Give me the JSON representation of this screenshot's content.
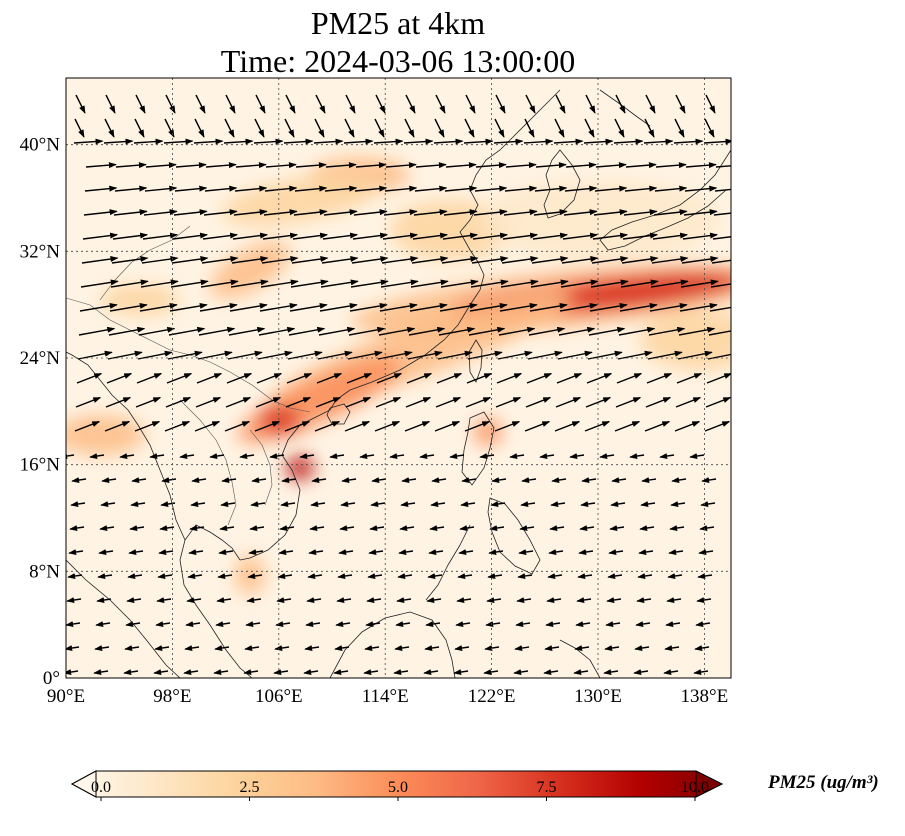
{
  "title": {
    "line1": "PM25 at 4km",
    "line2": "Time: 2024-03-06 13:00:00"
  },
  "map": {
    "extent": {
      "lon_min": 90,
      "lon_max": 140,
      "lat_min": 0,
      "lat_max": 45
    },
    "lon_ticks": [
      "90°E",
      "98°E",
      "106°E",
      "114°E",
      "122°E",
      "130°E",
      "138°E"
    ],
    "lat_ticks": [
      "0°",
      "8°N",
      "16°N",
      "24°N",
      "32°N",
      "40°N"
    ],
    "gridlines": "dotted",
    "field": "PM25",
    "overlay": "wind-vectors"
  },
  "colorbar": {
    "colormap": "OrRd",
    "label": "PM25 (ug/m³)",
    "min": 0.0,
    "max": 10.0,
    "ticks": [
      "0.0",
      "2.5",
      "5.0",
      "7.5",
      "10.0"
    ],
    "extend": "both",
    "colors": [
      "#fff7ec",
      "#fee8c8",
      "#fdd49e",
      "#fdbb84",
      "#fc8d59",
      "#ef6548",
      "#d7301f",
      "#b30000",
      "#7f0000"
    ]
  }
}
